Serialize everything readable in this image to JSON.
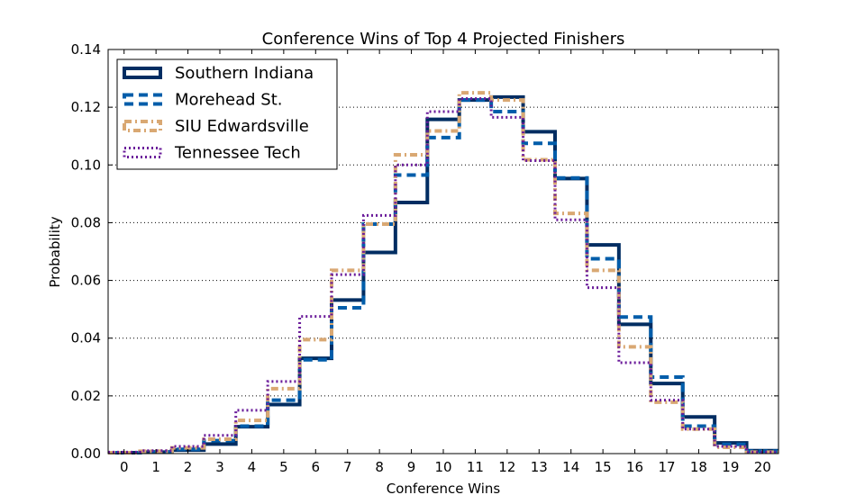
{
  "chart_data": {
    "type": "line",
    "step": true,
    "title": "Conference Wins of Top 4 Projected Finishers",
    "xlabel": "Conference Wins",
    "ylabel": "Probability",
    "xlim": [
      -0.5,
      20.5
    ],
    "ylim": [
      0.0,
      0.14
    ],
    "x": [
      0,
      1,
      2,
      3,
      4,
      5,
      6,
      7,
      8,
      9,
      10,
      11,
      12,
      13,
      14,
      15,
      16,
      17,
      18,
      19,
      20
    ],
    "xticks": [
      "0",
      "1",
      "2",
      "3",
      "4",
      "5",
      "6",
      "7",
      "8",
      "9",
      "10",
      "11",
      "12",
      "13",
      "14",
      "15",
      "16",
      "17",
      "18",
      "19",
      "20"
    ],
    "yticks": [
      "0.00",
      "0.02",
      "0.04",
      "0.06",
      "0.08",
      "0.10",
      "0.12",
      "0.14"
    ],
    "grid": "horizontal-dotted",
    "legend": "top-left",
    "series": [
      {
        "name": "Southern Indiana",
        "color": "#002d62",
        "style": "solid",
        "values": [
          0.0003,
          0.0005,
          0.0012,
          0.0033,
          0.0093,
          0.017,
          0.033,
          0.0532,
          0.0697,
          0.087,
          0.1158,
          0.1225,
          0.1235,
          0.1115,
          0.0953,
          0.0723,
          0.0448,
          0.0243,
          0.0127,
          0.0037,
          0.001
        ]
      },
      {
        "name": "Morehead St.",
        "color": "#005daa",
        "style": "dashed",
        "values": [
          0.0003,
          0.0006,
          0.0015,
          0.0045,
          0.0095,
          0.0185,
          0.0325,
          0.0505,
          0.0795,
          0.0965,
          0.1095,
          0.1225,
          0.1185,
          0.1075,
          0.0955,
          0.0675,
          0.0473,
          0.0265,
          0.0095,
          0.0032,
          0.0008
        ]
      },
      {
        "name": "SIU Edwardsville",
        "color": "#d9a873",
        "style": "dash-dot",
        "values": [
          0.0003,
          0.0008,
          0.002,
          0.005,
          0.0115,
          0.0225,
          0.0395,
          0.0635,
          0.0795,
          0.1035,
          0.1118,
          0.125,
          0.1225,
          0.1018,
          0.0832,
          0.0635,
          0.037,
          0.0178,
          0.0085,
          0.0022,
          0.0005
        ]
      },
      {
        "name": "Tennessee Tech",
        "color": "#6a1b9a",
        "style": "dotted",
        "values": [
          0.0005,
          0.001,
          0.0025,
          0.0063,
          0.015,
          0.025,
          0.0475,
          0.062,
          0.0825,
          0.1,
          0.1185,
          0.123,
          0.1165,
          0.1015,
          0.081,
          0.0575,
          0.0315,
          0.0185,
          0.0085,
          0.0025,
          0.0005
        ]
      }
    ]
  }
}
